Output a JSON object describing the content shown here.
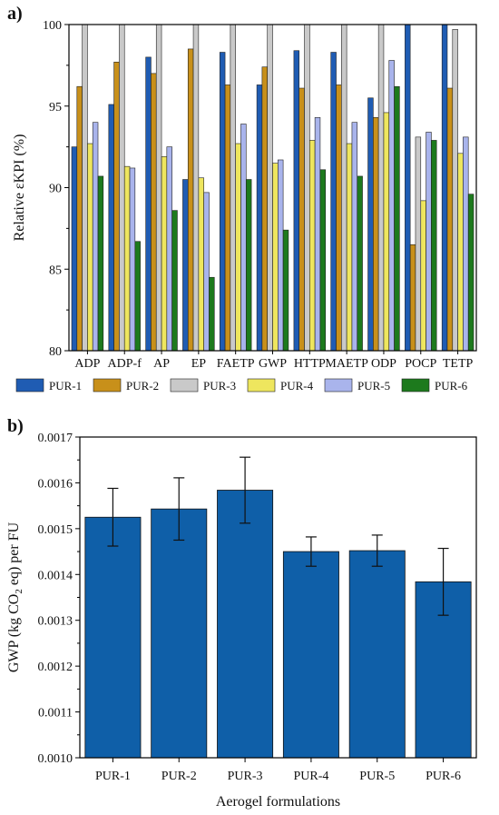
{
  "chart_data": [
    {
      "type": "bar",
      "panel_label": "a)",
      "ylabel": "Relative εKPI (%)",
      "ylim": [
        80,
        100
      ],
      "yticks": [
        80,
        85,
        90,
        95,
        100
      ],
      "categories": [
        "ADP",
        "ADP-f",
        "AP",
        "EP",
        "FAETP",
        "GWP",
        "HTTP",
        "MAETP",
        "ODP",
        "POCP",
        "TETP"
      ],
      "legend_placement": "bottom",
      "series": [
        {
          "name": "PUR-1",
          "color": "#1f5cb3",
          "values": [
            92.5,
            95.1,
            98.0,
            90.5,
            98.3,
            96.3,
            98.4,
            98.3,
            95.5,
            100.0,
            100.0
          ]
        },
        {
          "name": "PUR-2",
          "color": "#c8901a",
          "values": [
            96.2,
            97.7,
            97.0,
            98.5,
            96.3,
            97.4,
            96.1,
            96.3,
            94.3,
            86.5,
            96.1
          ]
        },
        {
          "name": "PUR-3",
          "color": "#c9c9c9",
          "values": [
            100.0,
            100.0,
            100.0,
            100.0,
            100.0,
            100.0,
            100.0,
            100.0,
            100.0,
            93.1,
            99.7
          ]
        },
        {
          "name": "PUR-4",
          "color": "#eee65e",
          "values": [
            92.7,
            91.3,
            91.9,
            90.6,
            92.7,
            91.5,
            92.9,
            92.7,
            94.6,
            89.2,
            92.1
          ]
        },
        {
          "name": "PUR-5",
          "color": "#a9b4ec",
          "values": [
            94.0,
            91.2,
            92.5,
            89.7,
            93.9,
            91.7,
            94.3,
            94.0,
            97.8,
            93.4,
            93.1
          ]
        },
        {
          "name": "PUR-6",
          "color": "#1d7a1d",
          "values": [
            90.7,
            86.7,
            88.6,
            84.5,
            90.5,
            87.4,
            91.1,
            90.7,
            96.2,
            92.9,
            89.6
          ]
        }
      ]
    },
    {
      "type": "bar",
      "panel_label": "b)",
      "xlabel": "Aerogel formulations",
      "ylabel_parts": {
        "main": "GWP (kg CO",
        "sub": "2",
        "rest": " eq) per FU"
      },
      "ylim": [
        0.001,
        0.0017
      ],
      "yticks": [
        "0.0010",
        "0.0011",
        "0.0012",
        "0.0013",
        "0.0014",
        "0.0015",
        "0.0016",
        "0.0017"
      ],
      "categories": [
        "PUR-1",
        "PUR-2",
        "PUR-3",
        "PUR-4",
        "PUR-5",
        "PUR-6"
      ],
      "values": [
        0.001525,
        0.001543,
        0.001584,
        0.00145,
        0.001452,
        0.001384
      ],
      "errors": [
        6.3e-05,
        6.8e-05,
        7.2e-05,
        3.2e-05,
        3.4e-05,
        7.3e-05
      ],
      "bar_color": "#0f5fa8"
    }
  ]
}
